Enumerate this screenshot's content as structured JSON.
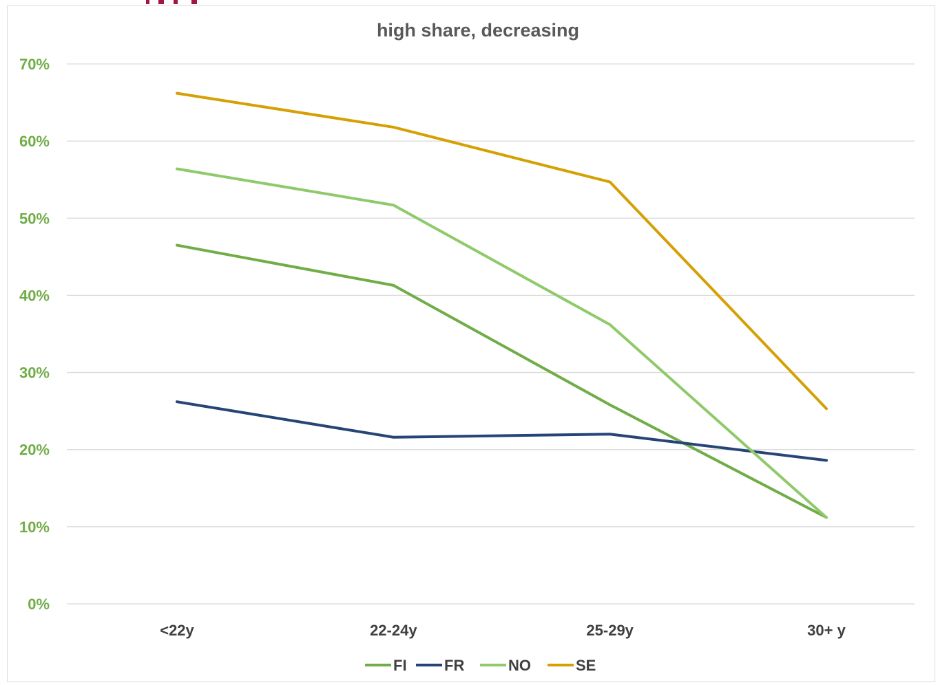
{
  "chart_data": {
    "type": "line",
    "title": "high share, decreasing",
    "categories": [
      "<22y",
      "22-24y",
      "25-29y",
      "30+ y"
    ],
    "ylim": [
      0,
      0.7
    ],
    "yticks": [
      0,
      0.1,
      0.2,
      0.3,
      0.4,
      0.5,
      0.6,
      0.7
    ],
    "ytick_labels": [
      "0%",
      "10%",
      "20%",
      "30%",
      "40%",
      "50%",
      "60%",
      "70%"
    ],
    "grid": true,
    "legend_position": "bottom",
    "series": [
      {
        "name": "FI",
        "color": "#70ad47",
        "values": [
          0.465,
          0.413,
          0.258,
          0.112
        ]
      },
      {
        "name": "FR",
        "color": "#264478",
        "values": [
          0.262,
          0.216,
          0.22,
          0.186
        ]
      },
      {
        "name": "NO",
        "color": "#8fca6a",
        "values": [
          0.564,
          0.517,
          0.362,
          0.112
        ]
      },
      {
        "name": "SE",
        "color": "#d4a003",
        "values": [
          0.662,
          0.618,
          0.547,
          0.253
        ]
      }
    ]
  },
  "accent_colors": {
    "corner_mark": "#a0173f",
    "ytick": "#70ad47",
    "grid": "#d9d9d9"
  }
}
